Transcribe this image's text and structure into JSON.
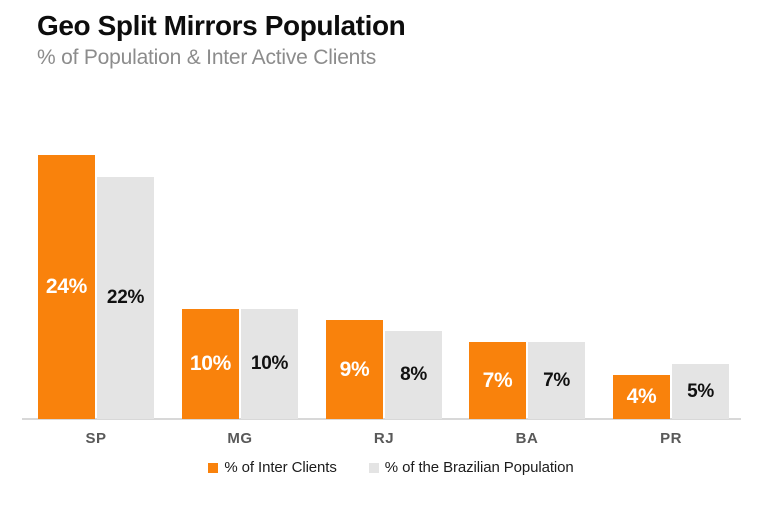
{
  "header": {
    "title": "Geo Split Mirrors Population",
    "subtitle": "% of Population & Inter Active Clients"
  },
  "colors": {
    "accent_orange": "#F9820C",
    "neutral_gray": "#E4E4E4",
    "axis_line": "#D8D8D8",
    "axis_label_gray": "#595959",
    "subtitle_gray": "#8C8C8C",
    "title_black": "#0D0D0D",
    "label_on_orange": "#FFFFFF",
    "label_on_gray": "#111111"
  },
  "chart_data": {
    "type": "bar",
    "title": "Geo Split Mirrors Population",
    "subtitle": "% of Population & Inter Active Clients",
    "categories": [
      "SP",
      "MG",
      "RJ",
      "BA",
      "PR"
    ],
    "series": [
      {
        "name": "% of Inter Clients",
        "color": "#F9820C",
        "label_color": "#FFFFFF",
        "values": [
          24,
          10,
          9,
          7,
          4
        ],
        "labels": [
          "24%",
          "10%",
          "9%",
          "7%",
          "4%"
        ]
      },
      {
        "name": "% of the Brazilian Population",
        "color": "#E4E4E4",
        "label_color": "#111111",
        "values": [
          22,
          10,
          8,
          7,
          5
        ],
        "labels": [
          "22%",
          "10%",
          "8%",
          "7%",
          "5%"
        ]
      }
    ],
    "xlabel": "",
    "ylabel": "",
    "ylim": [
      0,
      26
    ],
    "grid": false,
    "y_axis_visible": false,
    "legend_position": "bottom",
    "value_labels": "inside-center"
  },
  "legend": {
    "items": [
      {
        "label": "% of Inter Clients",
        "color": "#F9820C"
      },
      {
        "label": "% of the Brazilian Population",
        "color": "#E4E4E4"
      }
    ]
  }
}
